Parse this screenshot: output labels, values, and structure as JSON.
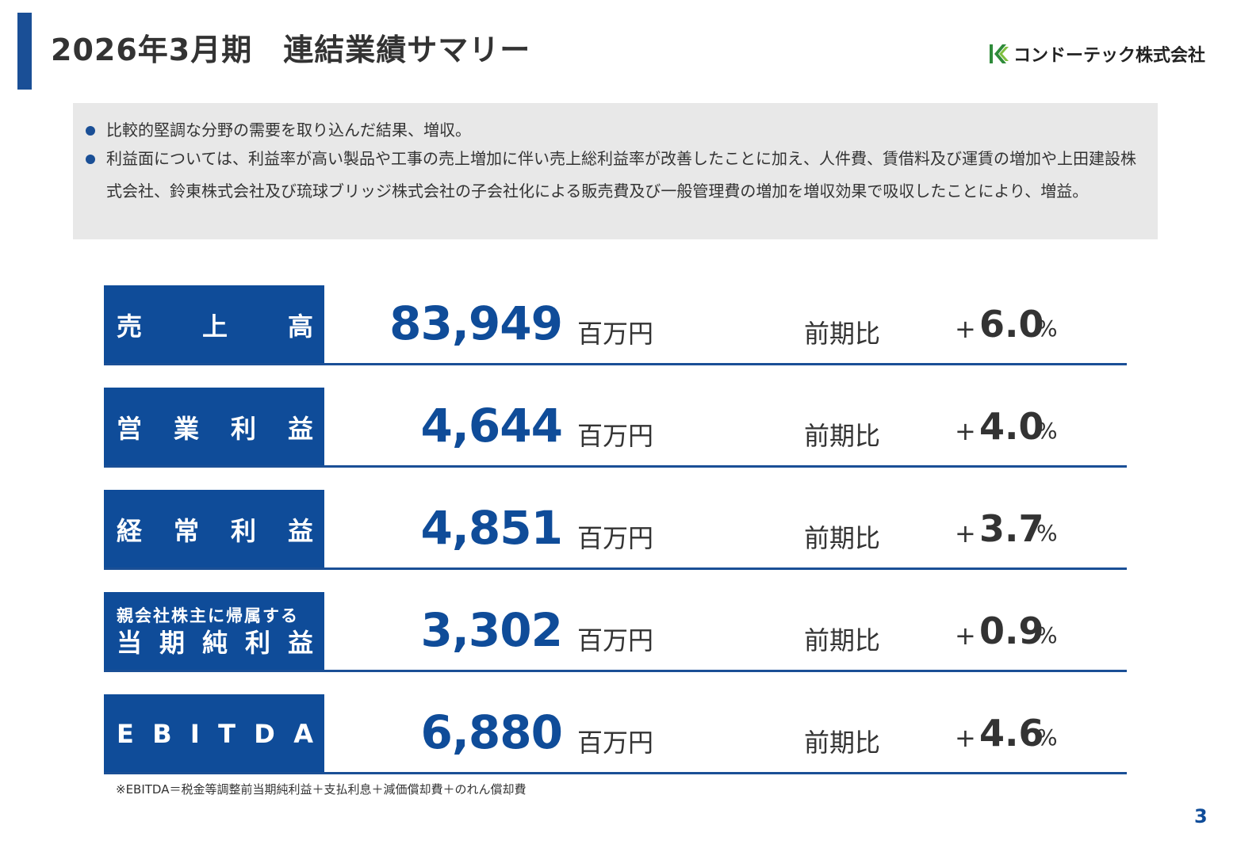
{
  "header": {
    "title": "2026年3月期　連結業績サマリー",
    "logo_text": "コンドーテック株式会社"
  },
  "summary": {
    "bullets": [
      "比較的堅調な分野の需要を取り込んだ結果、増収。",
      "利益面については、利益率が高い製品や工事の売上増加に伴い売上総利益率が改善したことに加え、人件費、賃借料及び運賃の増加や上田建設株式会社、鈴東株式会社及び琉球ブリッジ株式会社の子会社化による販売費及び一般管理費の増加を増収効果で吸収したことにより、増益。"
    ]
  },
  "rows": [
    {
      "label_chars": [
        "売",
        "上",
        "高"
      ],
      "value": "83,949",
      "unit": "百万円",
      "compare_label": "前期比",
      "sign": "+",
      "pct": "6.0",
      "pct_sign": "%"
    },
    {
      "label_chars": [
        "営",
        "業",
        "利",
        "益"
      ],
      "value": "4,644",
      "unit": "百万円",
      "compare_label": "前期比",
      "sign": "+",
      "pct": "4.0",
      "pct_sign": "%"
    },
    {
      "label_chars": [
        "経",
        "常",
        "利",
        "益"
      ],
      "value": "4,851",
      "unit": "百万円",
      "compare_label": "前期比",
      "sign": "+",
      "pct": "3.7",
      "pct_sign": "%"
    },
    {
      "label_sub": "親会社株主に帰属する",
      "label_chars": [
        "当",
        "期",
        "純",
        "利",
        "益"
      ],
      "value": "3,302",
      "unit": "百万円",
      "compare_label": "前期比",
      "sign": "+",
      "pct": "0.9",
      "pct_sign": "%"
    },
    {
      "label_chars": [
        "E",
        "B",
        "I",
        "T",
        "D",
        "A"
      ],
      "value": "6,880",
      "unit": "百万円",
      "compare_label": "前期比",
      "sign": "+",
      "pct": "4.6",
      "pct_sign": "%"
    }
  ],
  "footnote": "※EBITDA＝税金等調整前当期純利益＋支払利息＋減価償却費＋のれん償却費",
  "page_number": "3",
  "colors": {
    "accent": "#0f4c99",
    "summary_bg": "#e8e8e8",
    "logo_green": "#2e8b3a"
  }
}
